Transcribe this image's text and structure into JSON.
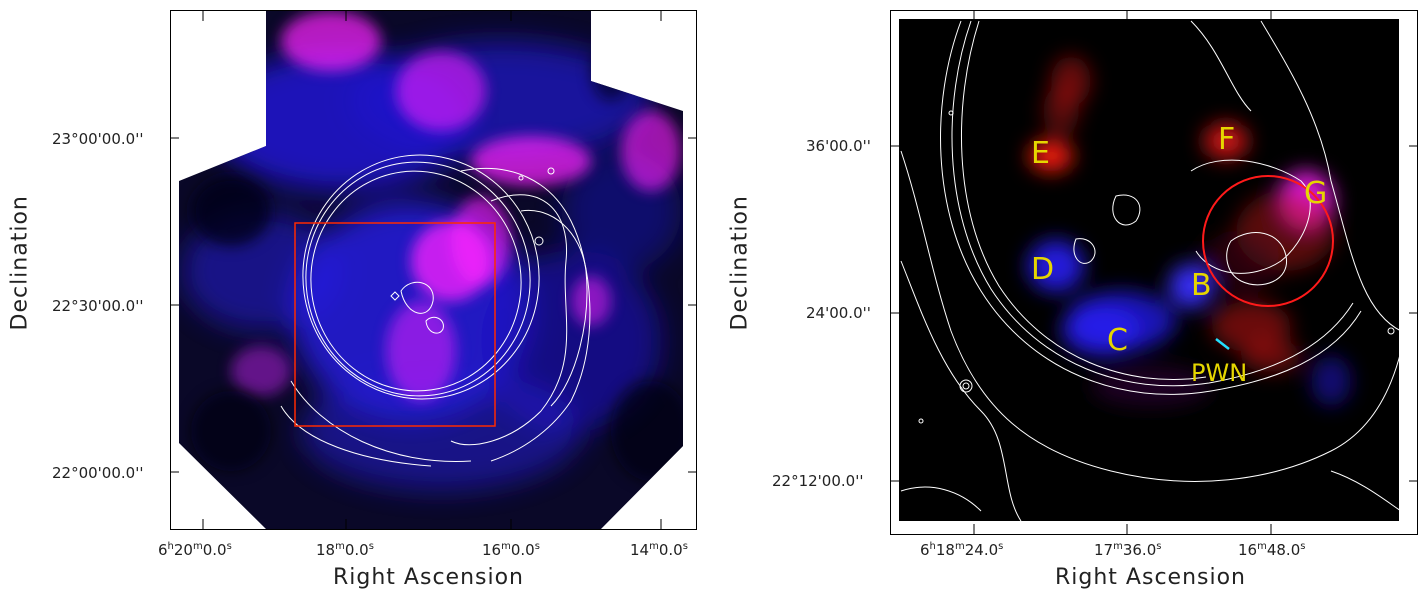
{
  "left_panel": {
    "y_ticks": [
      "23°00'00.0''",
      "22°30'00.0''",
      "22°00'00.0''"
    ],
    "x_ticks": [
      {
        "h": "6",
        "m": "20",
        "s": "0.0"
      },
      {
        "m": "18",
        "s": "0.0"
      },
      {
        "m": "16",
        "s": "0.0"
      },
      {
        "m": "14",
        "s": "0.0"
      }
    ],
    "x_title": "Right Ascension",
    "y_title": "Declination"
  },
  "right_panel": {
    "y_ticks": [
      "36'00.0''",
      "24'00.0''",
      "22°12'00.0''"
    ],
    "x_ticks": [
      {
        "h": "6",
        "m": "18",
        "s": "24.0"
      },
      {
        "m": "17",
        "s": "36.0"
      },
      {
        "m": "16",
        "s": "48.0"
      }
    ],
    "x_title": "Right Ascension",
    "y_title": "Declination",
    "region_labels": [
      "E",
      "F",
      "G",
      "D",
      "B",
      "C"
    ],
    "pwn_label": "PWN"
  },
  "colors": {
    "magenta": "#ff22ff",
    "blue": "#2222ff",
    "red": "#e01818",
    "yellow_label": "#e6d600",
    "cyan_marker": "#22e0ff",
    "contour": "#ffffff",
    "box": "#ff2a00"
  }
}
